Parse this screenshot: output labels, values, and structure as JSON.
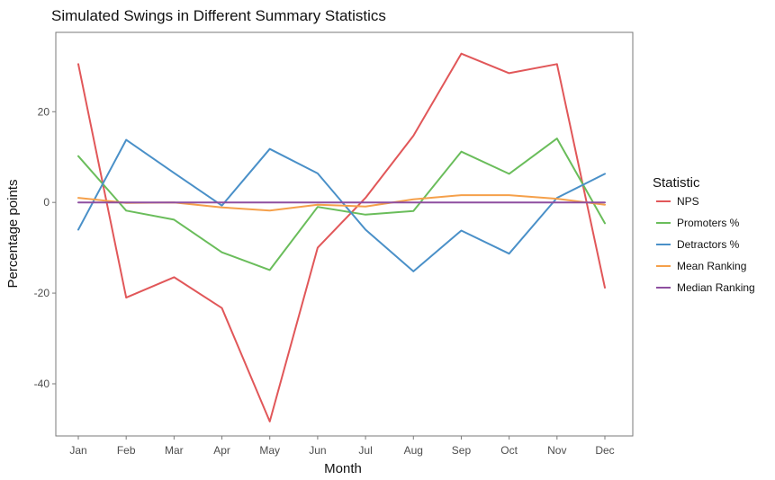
{
  "chart_data": {
    "type": "line",
    "title": "Simulated Swings in Different Summary Statistics",
    "xlabel": "Month",
    "ylabel": "Percentage points",
    "categories": [
      "Jan",
      "Feb",
      "Mar",
      "Apr",
      "May",
      "Jun",
      "Jul",
      "Aug",
      "Sep",
      "Oct",
      "Nov",
      "Dec"
    ],
    "ylim": [
      -51.5,
      37.5
    ],
    "yticks": [
      -40,
      -20,
      0,
      20
    ],
    "grid": false,
    "legend": {
      "title": "Statistic",
      "position": "right"
    },
    "series": [
      {
        "name": "NPS",
        "color": "#E15759",
        "values": [
          30.5,
          -21.0,
          -16.5,
          -23.3,
          -48.3,
          -10.0,
          1.0,
          14.7,
          32.8,
          28.5,
          30.5,
          -18.8
        ]
      },
      {
        "name": "Promoters %",
        "color": "#6ABD5B",
        "values": [
          10.2,
          -1.8,
          -3.8,
          -11.0,
          -14.9,
          -1.0,
          -2.7,
          -1.9,
          11.2,
          6.3,
          14.1,
          -4.6
        ]
      },
      {
        "name": "Detractors %",
        "color": "#4A90C8",
        "values": [
          -6.0,
          13.8,
          6.5,
          -0.7,
          11.8,
          6.4,
          -6.0,
          -15.2,
          -6.2,
          -11.3,
          1.0,
          6.3
        ]
      },
      {
        "name": "Mean Ranking",
        "color": "#F5A04A",
        "values": [
          1.0,
          -0.1,
          0.0,
          -1.1,
          -1.8,
          -0.5,
          -0.9,
          0.7,
          1.6,
          1.6,
          0.8,
          -0.5
        ]
      },
      {
        "name": "Median Ranking",
        "color": "#8E4FA0",
        "values": [
          0.0,
          0.0,
          0.0,
          0.0,
          0.0,
          0.0,
          0.0,
          0.0,
          0.0,
          0.0,
          0.0,
          0.0
        ]
      }
    ]
  }
}
